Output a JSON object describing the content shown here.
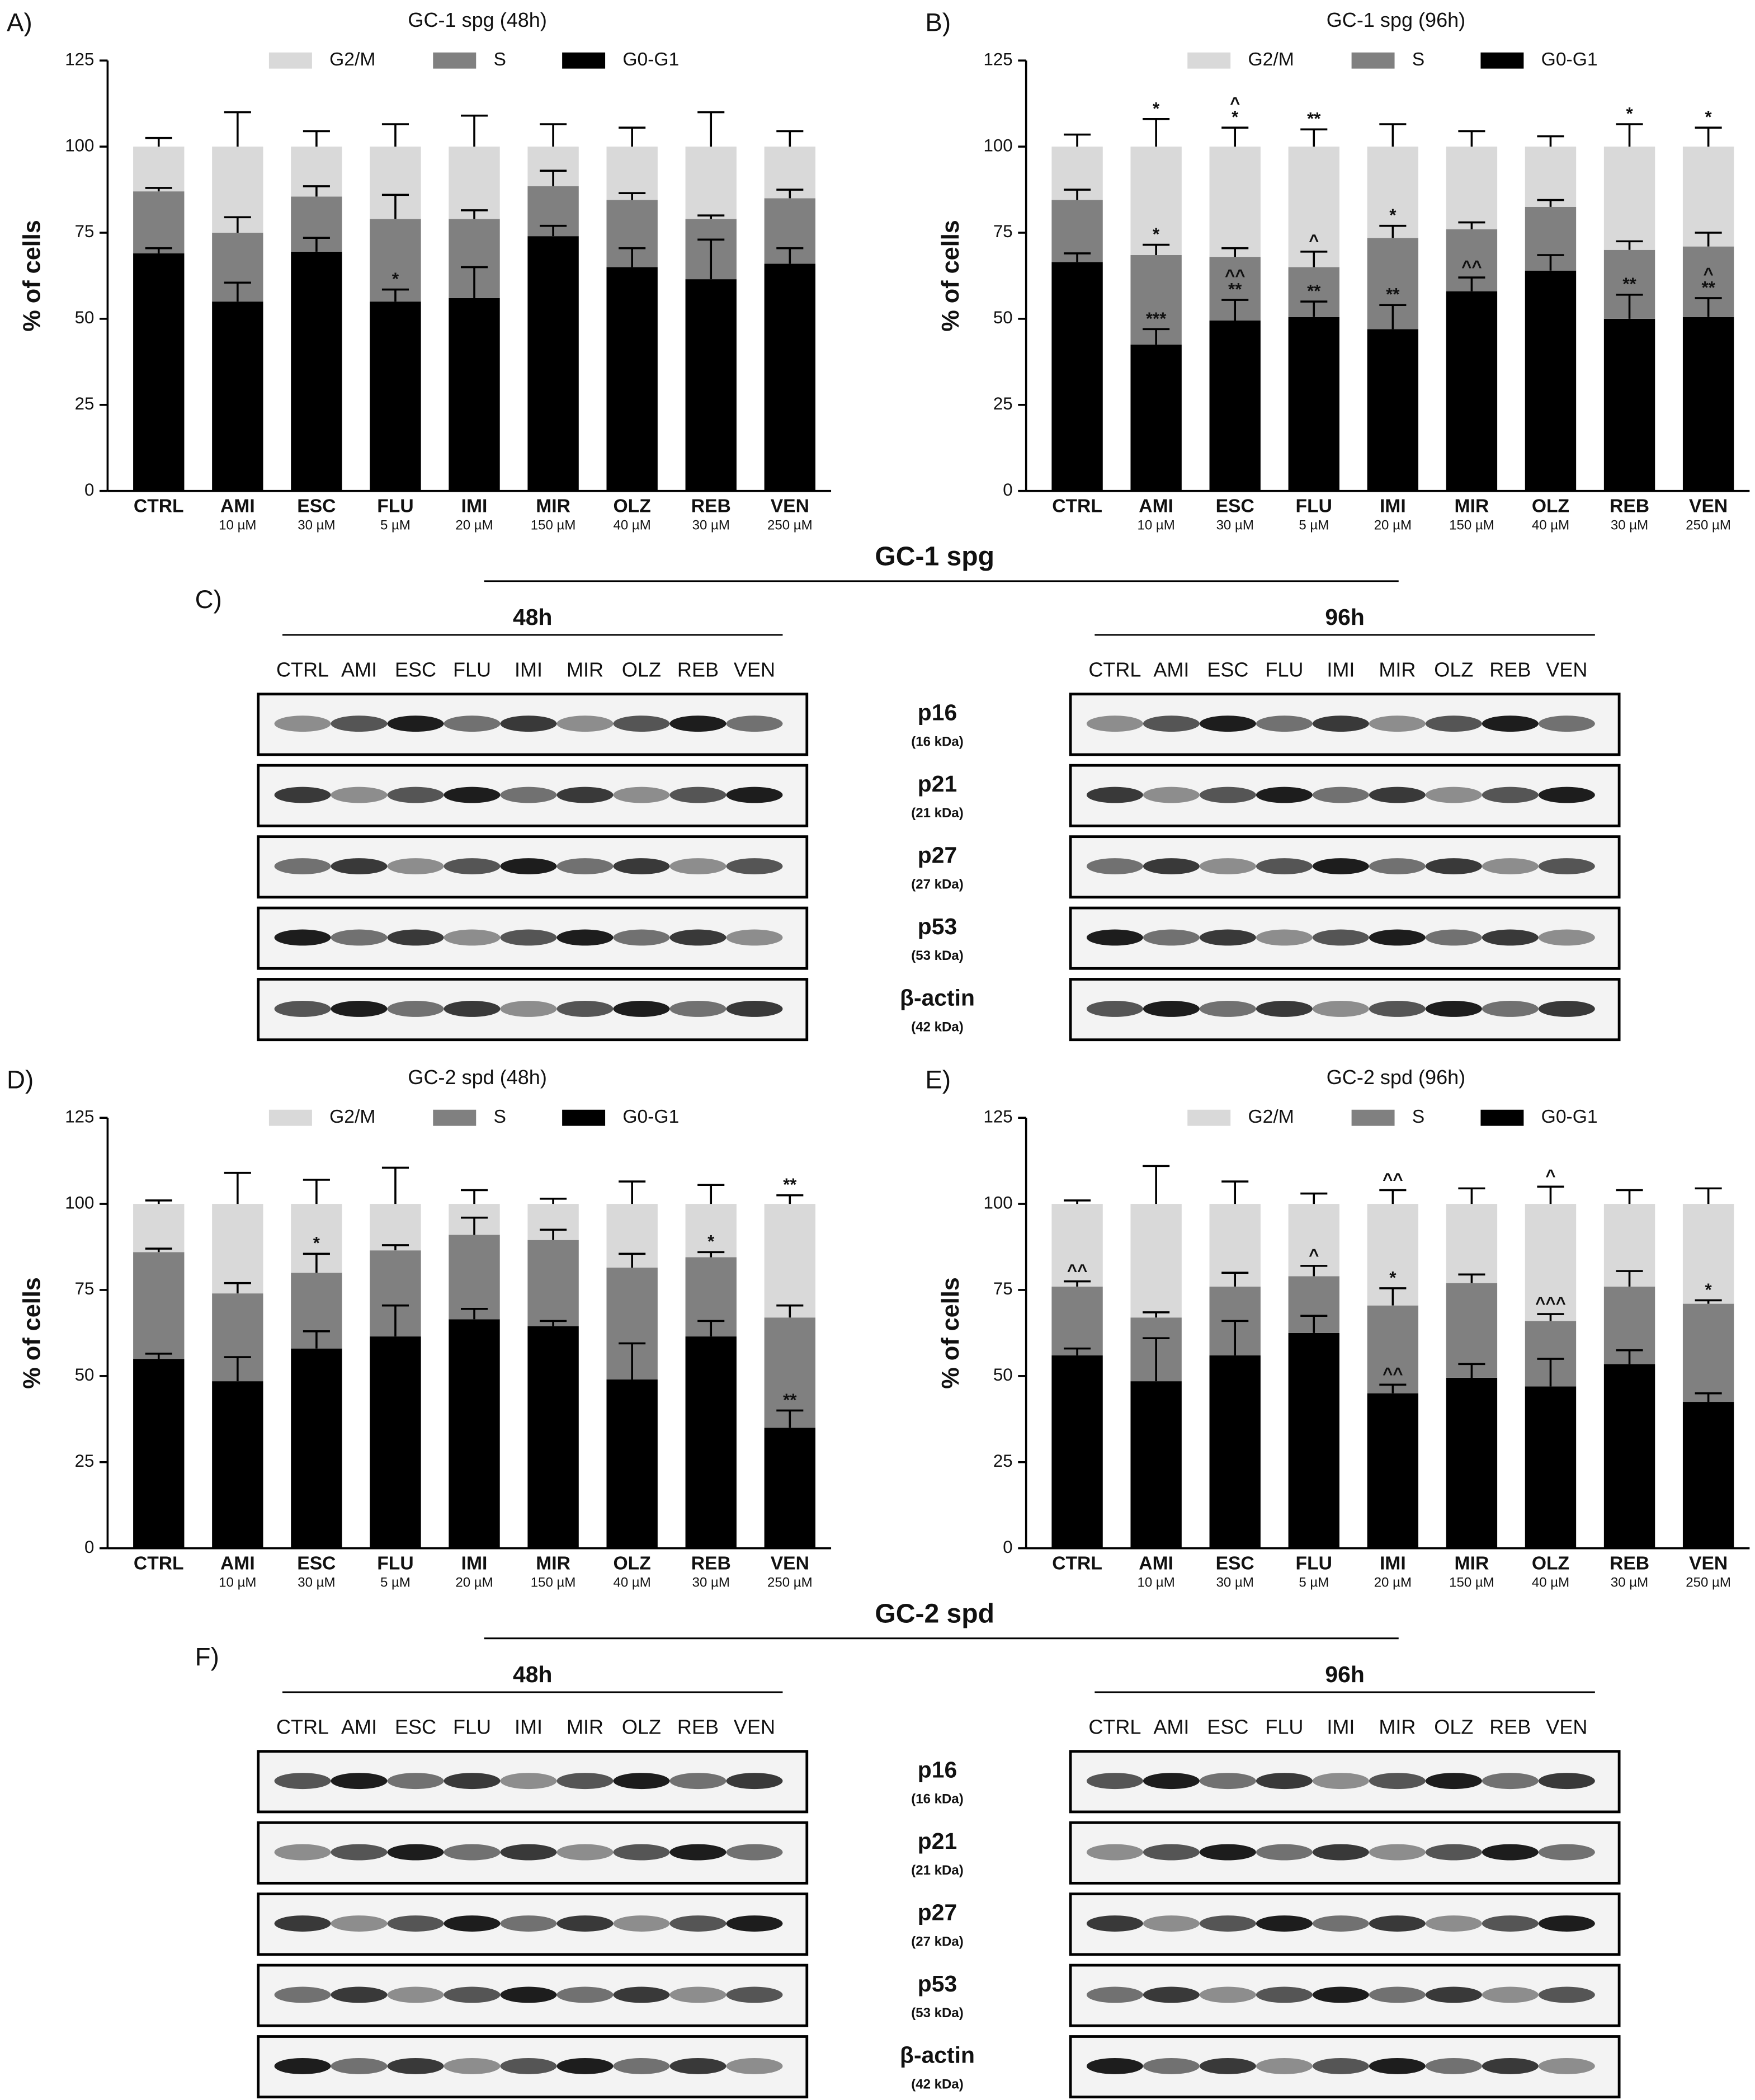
{
  "chart_data": [
    {
      "type": "stacked-bar",
      "panel_label": "A)",
      "title": "GC-1 spg (48h)",
      "y_label": "% of cells",
      "categories": [
        "CTRL",
        "AMI",
        "ESC",
        "FLU",
        "IMI",
        "MIR",
        "OLZ",
        "REB",
        "VEN"
      ],
      "category_notes": [
        null,
        "10 µM",
        "30 µM",
        "5 µM",
        "20 µM",
        "150 µM",
        "40 µM",
        "30 µM",
        "250 µM"
      ],
      "ylim": [
        0,
        125
      ],
      "yticks": [
        0,
        25,
        50,
        75,
        100,
        125
      ],
      "series": [
        {
          "name": "G0-G1",
          "color": "#000000",
          "values": [
            69,
            55,
            69.5,
            55,
            56,
            74,
            65,
            61.5,
            66
          ],
          "errors": [
            1.5,
            5.5,
            4,
            3.5,
            9,
            3,
            5.5,
            11.5,
            4.5
          ],
          "annotations": [
            null,
            null,
            null,
            [
              "*"
            ],
            null,
            null,
            null,
            null,
            null
          ]
        },
        {
          "name": "S",
          "color": "#808080",
          "values": [
            18,
            20,
            16,
            24,
            23,
            14.5,
            19.5,
            17.5,
            19
          ],
          "errors": [
            1,
            4.5,
            3,
            7,
            2.5,
            4.5,
            2,
            1,
            2.5
          ]
        },
        {
          "name": "G2/M",
          "color": "#d9d9d9",
          "values": [
            13,
            25,
            14.5,
            21,
            21,
            11.5,
            15.5,
            21,
            15
          ],
          "errors": [
            2.5,
            10,
            4.5,
            6.5,
            9,
            6.5,
            5.5,
            10,
            4.5
          ]
        }
      ]
    },
    {
      "type": "stacked-bar",
      "panel_label": "B)",
      "title": "GC-1 spg (96h)",
      "y_label": "% of cells",
      "categories": [
        "CTRL",
        "AMI",
        "ESC",
        "FLU",
        "IMI",
        "MIR",
        "OLZ",
        "REB",
        "VEN"
      ],
      "category_notes": [
        null,
        "10 µM",
        "30 µM",
        "5 µM",
        "20 µM",
        "150 µM",
        "40 µM",
        "30 µM",
        "250 µM"
      ],
      "ylim": [
        0,
        125
      ],
      "yticks": [
        0,
        25,
        50,
        75,
        100,
        125
      ],
      "series": [
        {
          "name": "G0-G1",
          "color": "#000000",
          "values": [
            66.5,
            42.5,
            49.5,
            50.5,
            47,
            58,
            64,
            50,
            50.5
          ],
          "errors": [
            2.5,
            4.5,
            6,
            4.5,
            7,
            4,
            4.5,
            7,
            5.5
          ],
          "annotations": [
            null,
            [
              "***"
            ],
            [
              "^^",
              "**"
            ],
            [
              "**"
            ],
            [
              "**"
            ],
            [
              "^^"
            ],
            null,
            [
              "**"
            ],
            [
              "^",
              "**"
            ]
          ]
        },
        {
          "name": "S",
          "color": "#808080",
          "values": [
            18,
            26,
            18.5,
            14.5,
            26.5,
            18,
            18.5,
            20,
            20.5
          ],
          "errors": [
            3,
            3,
            2.5,
            4.5,
            3.5,
            2,
            2,
            2.5,
            4
          ],
          "annotations": [
            null,
            [
              "*"
            ],
            null,
            [
              "^"
            ],
            [
              "*"
            ],
            null,
            null,
            null,
            null
          ]
        },
        {
          "name": "G2/M",
          "color": "#d9d9d9",
          "values": [
            15.5,
            31.5,
            32,
            35,
            26.5,
            24,
            17.5,
            30,
            29
          ],
          "errors": [
            3.5,
            8,
            5.5,
            5,
            6.5,
            4.5,
            3,
            6.5,
            5.5
          ],
          "annotations": [
            null,
            [
              "*"
            ],
            [
              "^",
              "*"
            ],
            [
              "**"
            ],
            null,
            null,
            null,
            [
              "*"
            ],
            [
              "*"
            ]
          ]
        }
      ]
    },
    {
      "type": "stacked-bar",
      "panel_label": "D)",
      "title": "GC-2 spd (48h)",
      "y_label": "% of cells",
      "categories": [
        "CTRL",
        "AMI",
        "ESC",
        "FLU",
        "IMI",
        "MIR",
        "OLZ",
        "REB",
        "VEN"
      ],
      "category_notes": [
        null,
        "10 µM",
        "30 µM",
        "5 µM",
        "20 µM",
        "150 µM",
        "40 µM",
        "30 µM",
        "250 µM"
      ],
      "ylim": [
        0,
        125
      ],
      "yticks": [
        0,
        25,
        50,
        75,
        100,
        125
      ],
      "series": [
        {
          "name": "G0-G1",
          "color": "#000000",
          "values": [
            55,
            48.5,
            58,
            61.5,
            66.5,
            64.5,
            49,
            61.5,
            35
          ],
          "errors": [
            1.5,
            7,
            5,
            9,
            3,
            1.5,
            10.5,
            4.5,
            5
          ],
          "annotations": [
            null,
            null,
            null,
            null,
            null,
            null,
            null,
            null,
            [
              "**"
            ]
          ]
        },
        {
          "name": "S",
          "color": "#808080",
          "values": [
            31,
            25.5,
            22,
            25,
            24.5,
            25,
            32.5,
            23,
            32
          ],
          "errors": [
            1,
            3,
            5.5,
            1.5,
            5,
            3,
            4,
            1.5,
            3.5
          ],
          "annotations": [
            null,
            null,
            [
              "*"
            ],
            null,
            null,
            null,
            null,
            [
              "*"
            ],
            null
          ]
        },
        {
          "name": "G2/M",
          "color": "#d9d9d9",
          "values": [
            14,
            26,
            20,
            13.5,
            9,
            10.5,
            18.5,
            15.5,
            33
          ],
          "errors": [
            1,
            9,
            7,
            10.5,
            4,
            1.5,
            6.5,
            5.5,
            2.5
          ],
          "annotations": [
            null,
            null,
            null,
            null,
            null,
            null,
            null,
            null,
            [
              "**"
            ]
          ]
        }
      ]
    },
    {
      "type": "stacked-bar",
      "panel_label": "E)",
      "title": "GC-2 spd (96h)",
      "y_label": "% of cells",
      "categories": [
        "CTRL",
        "AMI",
        "ESC",
        "FLU",
        "IMI",
        "MIR",
        "OLZ",
        "REB",
        "VEN"
      ],
      "category_notes": [
        null,
        "10 µM",
        "30 µM",
        "5 µM",
        "20 µM",
        "150 µM",
        "40 µM",
        "30 µM",
        "250 µM"
      ],
      "ylim": [
        0,
        125
      ],
      "yticks": [
        0,
        25,
        50,
        75,
        100,
        125
      ],
      "series": [
        {
          "name": "G0-G1",
          "color": "#000000",
          "values": [
            56,
            48.5,
            56,
            62.5,
            45,
            49.5,
            47,
            53.5,
            42.5
          ],
          "errors": [
            2,
            12.5,
            10,
            5,
            2.5,
            4,
            8,
            4,
            2.5
          ],
          "annotations": [
            null,
            null,
            null,
            null,
            [
              "^^"
            ],
            null,
            null,
            null,
            null
          ]
        },
        {
          "name": "S",
          "color": "#808080",
          "values": [
            20,
            18.5,
            20,
            16.5,
            25.5,
            27.5,
            19,
            22.5,
            28.5
          ],
          "errors": [
            1.5,
            1.5,
            4,
            3,
            5,
            2.5,
            2,
            4.5,
            1
          ],
          "annotations": [
            [
              "^^"
            ],
            null,
            null,
            [
              "^"
            ],
            [
              "*"
            ],
            null,
            [
              "^^^"
            ],
            null,
            [
              "*"
            ]
          ]
        },
        {
          "name": "G2/M",
          "color": "#d9d9d9",
          "values": [
            24,
            33,
            24,
            21,
            29.5,
            23,
            34,
            24,
            29
          ],
          "errors": [
            1,
            11,
            6.5,
            3,
            4,
            4.5,
            5,
            4,
            4.5
          ],
          "annotations": [
            null,
            null,
            null,
            null,
            [
              "^^"
            ],
            null,
            [
              "^"
            ],
            null,
            null
          ]
        }
      ]
    }
  ],
  "blots": [
    {
      "panel_label": "C)",
      "title": "GC-1 spg",
      "groups": [
        {
          "label": "48h",
          "lanes": [
            "CTRL",
            "AMI",
            "ESC",
            "FLU",
            "IMI",
            "MIR",
            "OLZ",
            "REB",
            "VEN"
          ]
        },
        {
          "label": "96h",
          "lanes": [
            "CTRL",
            "AMI",
            "ESC",
            "FLU",
            "IMI",
            "MIR",
            "OLZ",
            "REB",
            "VEN"
          ]
        }
      ],
      "proteins": [
        {
          "name": "p16",
          "size": "(16 kDa)"
        },
        {
          "name": "p21",
          "size": "(21 kDa)"
        },
        {
          "name": "p27",
          "size": "(27 kDa)"
        },
        {
          "name": "p53",
          "size": "(53 kDa)"
        },
        {
          "name": "β-actin",
          "size": "(42 kDa)"
        }
      ]
    },
    {
      "panel_label": "F)",
      "title": "GC-2 spd",
      "groups": [
        {
          "label": "48h",
          "lanes": [
            "CTRL",
            "AMI",
            "ESC",
            "FLU",
            "IMI",
            "MIR",
            "OLZ",
            "REB",
            "VEN"
          ]
        },
        {
          "label": "96h",
          "lanes": [
            "CTRL",
            "AMI",
            "ESC",
            "FLU",
            "IMI",
            "MIR",
            "OLZ",
            "REB",
            "VEN"
          ]
        }
      ],
      "proteins": [
        {
          "name": "p16",
          "size": "(16 kDa)"
        },
        {
          "name": "p21",
          "size": "(21 kDa)"
        },
        {
          "name": "p27",
          "size": "(27 kDa)"
        },
        {
          "name": "p53",
          "size": "(53 kDa)"
        },
        {
          "name": "β-actin",
          "size": "(42 kDa)"
        }
      ]
    }
  ]
}
